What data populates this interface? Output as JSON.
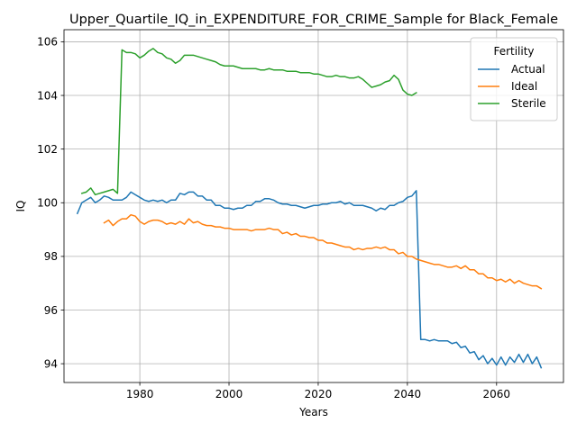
{
  "chart_data": {
    "type": "line",
    "title": "Upper_Quartile_IQ_in_EXPENDITURE_FOR_CRIME_Sample for Black_Female",
    "xlabel": "Years",
    "ylabel": "IQ",
    "xlim": [
      1963,
      2075
    ],
    "ylim": [
      93.3,
      106.45
    ],
    "x_ticks": [
      1980,
      2000,
      2020,
      2040,
      2060
    ],
    "y_ticks": [
      94,
      96,
      98,
      100,
      102,
      104,
      106
    ],
    "grid": true,
    "legend": {
      "title": "Fertility",
      "position": "top-right"
    },
    "series": [
      {
        "name": "Actual",
        "color": "#1f77b4",
        "x": [
          1966,
          1967,
          1968,
          1969,
          1970,
          1971,
          1972,
          1973,
          1974,
          1975,
          1976,
          1977,
          1978,
          1979,
          1980,
          1981,
          1982,
          1983,
          1984,
          1985,
          1986,
          1987,
          1988,
          1989,
          1990,
          1991,
          1992,
          1993,
          1994,
          1995,
          1996,
          1997,
          1998,
          1999,
          2000,
          2001,
          2002,
          2003,
          2004,
          2005,
          2006,
          2007,
          2008,
          2009,
          2010,
          2011,
          2012,
          2013,
          2014,
          2015,
          2016,
          2017,
          2018,
          2019,
          2020,
          2021,
          2022,
          2023,
          2024,
          2025,
          2026,
          2027,
          2028,
          2029,
          2030,
          2031,
          2032,
          2033,
          2034,
          2035,
          2036,
          2037,
          2038,
          2039,
          2040,
          2041,
          2042,
          2043,
          2044,
          2045,
          2046,
          2047,
          2048,
          2049,
          2050,
          2051,
          2052,
          2053,
          2054,
          2055,
          2056,
          2057,
          2058,
          2059,
          2060,
          2061,
          2062,
          2063,
          2064,
          2065,
          2066,
          2067,
          2068,
          2069,
          2070
        ],
        "y": [
          99.6,
          100.0,
          100.1,
          100.2,
          100.0,
          100.1,
          100.25,
          100.2,
          100.1,
          100.1,
          100.1,
          100.2,
          100.4,
          100.3,
          100.2,
          100.1,
          100.05,
          100.1,
          100.05,
          100.1,
          100.0,
          100.1,
          100.1,
          100.35,
          100.3,
          100.4,
          100.4,
          100.25,
          100.25,
          100.1,
          100.1,
          99.9,
          99.9,
          99.8,
          99.8,
          99.75,
          99.8,
          99.8,
          99.9,
          99.9,
          100.05,
          100.05,
          100.15,
          100.15,
          100.1,
          100.0,
          99.95,
          99.95,
          99.9,
          99.9,
          99.85,
          99.8,
          99.85,
          99.9,
          99.9,
          99.95,
          99.95,
          100.0,
          100.0,
          100.05,
          99.95,
          100.0,
          99.9,
          99.9,
          99.9,
          99.85,
          99.8,
          99.7,
          99.8,
          99.75,
          99.9,
          99.9,
          100.0,
          100.05,
          100.2,
          100.25,
          100.45,
          94.9,
          94.9,
          94.85,
          94.9,
          94.85,
          94.85,
          94.85,
          94.75,
          94.8,
          94.6,
          94.65,
          94.4,
          94.45,
          94.15,
          94.3,
          94.0,
          94.2,
          93.95,
          94.25,
          93.95,
          94.25,
          94.05,
          94.35,
          94.05,
          94.35,
          94.0,
          94.25,
          93.85
        ]
      },
      {
        "name": "Ideal",
        "color": "#ff7f0e",
        "x": [
          1972,
          1973,
          1974,
          1975,
          1976,
          1977,
          1978,
          1979,
          1980,
          1981,
          1982,
          1983,
          1984,
          1985,
          1986,
          1987,
          1988,
          1989,
          1990,
          1991,
          1992,
          1993,
          1994,
          1995,
          1996,
          1997,
          1998,
          1999,
          2000,
          2001,
          2002,
          2003,
          2004,
          2005,
          2006,
          2007,
          2008,
          2009,
          2010,
          2011,
          2012,
          2013,
          2014,
          2015,
          2016,
          2017,
          2018,
          2019,
          2020,
          2021,
          2022,
          2023,
          2024,
          2025,
          2026,
          2027,
          2028,
          2029,
          2030,
          2031,
          2032,
          2033,
          2034,
          2035,
          2036,
          2037,
          2038,
          2039,
          2040,
          2041,
          2042,
          2043,
          2044,
          2045,
          2046,
          2047,
          2048,
          2049,
          2050,
          2051,
          2052,
          2053,
          2054,
          2055,
          2056,
          2057,
          2058,
          2059,
          2060,
          2061,
          2062,
          2063,
          2064,
          2065,
          2066,
          2067,
          2068,
          2069,
          2070
        ],
        "y": [
          99.25,
          99.35,
          99.15,
          99.3,
          99.4,
          99.4,
          99.55,
          99.5,
          99.3,
          99.2,
          99.3,
          99.35,
          99.35,
          99.3,
          99.2,
          99.25,
          99.2,
          99.3,
          99.2,
          99.4,
          99.25,
          99.3,
          99.2,
          99.15,
          99.15,
          99.1,
          99.1,
          99.05,
          99.05,
          99.0,
          99.0,
          99.0,
          99.0,
          98.95,
          99.0,
          99.0,
          99.0,
          99.05,
          99.0,
          99.0,
          98.85,
          98.9,
          98.8,
          98.85,
          98.75,
          98.75,
          98.7,
          98.7,
          98.6,
          98.6,
          98.5,
          98.5,
          98.45,
          98.4,
          98.35,
          98.35,
          98.25,
          98.3,
          98.25,
          98.3,
          98.3,
          98.35,
          98.3,
          98.35,
          98.25,
          98.25,
          98.1,
          98.15,
          98.0,
          98.0,
          97.9,
          97.85,
          97.8,
          97.75,
          97.7,
          97.7,
          97.65,
          97.6,
          97.6,
          97.65,
          97.55,
          97.65,
          97.5,
          97.5,
          97.35,
          97.35,
          97.2,
          97.2,
          97.1,
          97.15,
          97.05,
          97.15,
          97.0,
          97.1,
          97.0,
          96.95,
          96.9,
          96.9,
          96.8
        ]
      },
      {
        "name": "Sterile",
        "color": "#2ca02c",
        "x": [
          1967,
          1968,
          1969,
          1970,
          1971,
          1972,
          1973,
          1974,
          1975,
          1976,
          1977,
          1978,
          1979,
          1980,
          1981,
          1982,
          1983,
          1984,
          1985,
          1986,
          1987,
          1988,
          1989,
          1990,
          1991,
          1992,
          1993,
          1994,
          1995,
          1996,
          1997,
          1998,
          1999,
          2000,
          2001,
          2002,
          2003,
          2004,
          2005,
          2006,
          2007,
          2008,
          2009,
          2010,
          2011,
          2012,
          2013,
          2014,
          2015,
          2016,
          2017,
          2018,
          2019,
          2020,
          2021,
          2022,
          2023,
          2024,
          2025,
          2026,
          2027,
          2028,
          2029,
          2030,
          2031,
          2032,
          2033,
          2034,
          2035,
          2036,
          2037,
          2038,
          2039,
          2040,
          2041,
          2042
        ],
        "y": [
          100.35,
          100.4,
          100.55,
          100.3,
          100.35,
          100.4,
          100.45,
          100.5,
          100.35,
          105.7,
          105.6,
          105.6,
          105.55,
          105.4,
          105.5,
          105.65,
          105.75,
          105.6,
          105.55,
          105.4,
          105.35,
          105.2,
          105.3,
          105.5,
          105.5,
          105.5,
          105.45,
          105.4,
          105.35,
          105.3,
          105.25,
          105.15,
          105.1,
          105.1,
          105.1,
          105.05,
          105.0,
          105.0,
          105.0,
          105.0,
          104.95,
          104.95,
          105.0,
          104.95,
          104.95,
          104.95,
          104.9,
          104.9,
          104.9,
          104.85,
          104.85,
          104.85,
          104.8,
          104.8,
          104.75,
          104.7,
          104.7,
          104.75,
          104.7,
          104.7,
          104.65,
          104.65,
          104.7,
          104.6,
          104.45,
          104.3,
          104.35,
          104.4,
          104.5,
          104.55,
          104.75,
          104.6,
          104.2,
          104.05,
          104.0,
          104.1
        ]
      }
    ]
  }
}
